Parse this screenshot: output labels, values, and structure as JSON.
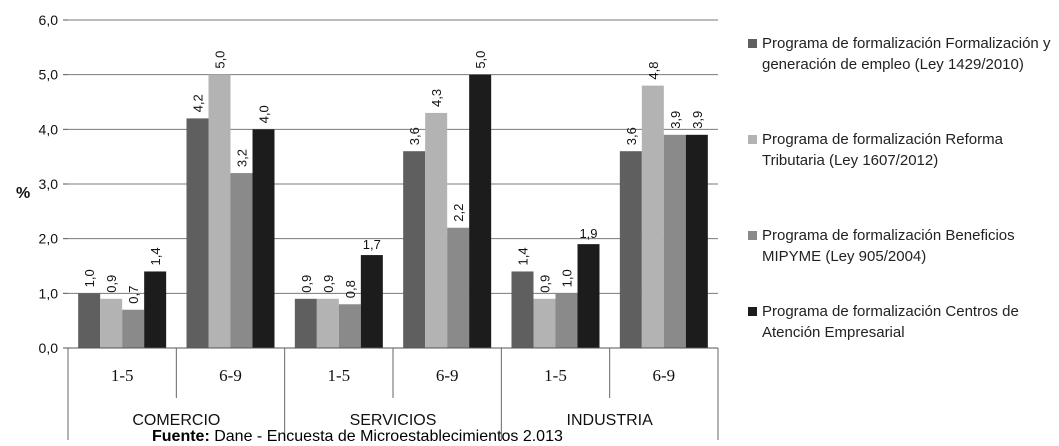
{
  "chart_data": {
    "type": "bar",
    "title": "",
    "ylabel": "%",
    "ylim": [
      0,
      6
    ],
    "yticks": [
      "0,0",
      "1,0",
      "2,0",
      "3,0",
      "4,0",
      "5,0",
      "6,0"
    ],
    "grid": true,
    "groups": [
      {
        "name": "COMERCIO",
        "categories": [
          "1-5",
          "6-9"
        ]
      },
      {
        "name": "SERVICIOS",
        "categories": [
          "1-5",
          "6-9"
        ]
      },
      {
        "name": "INDUSTRIA",
        "categories": [
          "1-5",
          "6-9"
        ]
      }
    ],
    "series": [
      {
        "name": "Programa de formalización Formalización y generación de empleo (Ley 1429/2010)",
        "color": "#5f5f5f",
        "values": [
          1.0,
          4.2,
          0.9,
          3.6,
          1.4,
          3.6
        ],
        "labels": [
          "1,0",
          "4,2",
          "0,9",
          "3,6",
          "1,4",
          "3,6"
        ]
      },
      {
        "name": "Programa de formalización Reforma Tributaria (Ley 1607/2012)",
        "color": "#b3b3b3",
        "values": [
          0.9,
          5.0,
          0.9,
          4.3,
          0.9,
          4.8
        ],
        "labels": [
          "0,9",
          "5,0",
          "0,9",
          "4,3",
          "0,9",
          "4,8"
        ]
      },
      {
        "name": "Programa de formalización Beneficios MIPYME (Ley 905/2004)",
        "color": "#8a8a8a",
        "values": [
          0.7,
          3.2,
          0.8,
          2.2,
          1.0,
          3.9
        ],
        "labels": [
          "0,7",
          "3,2",
          "0,8",
          "2,2",
          "1,0",
          "3,9"
        ]
      },
      {
        "name": "Programa de formalización  Centros de Atención Empresarial",
        "color": "#1c1c1c",
        "values": [
          1.4,
          4.0,
          1.7,
          5.0,
          1.9,
          3.9
        ],
        "labels": [
          "1,4",
          "4,0",
          "1,7",
          "5,0",
          "1,9",
          "3,9"
        ]
      }
    ],
    "source_prefix": "Fuente:",
    "source_text": " Dane - Encuesta de Microestablecimientos  2.013",
    "legend_position": "right"
  }
}
